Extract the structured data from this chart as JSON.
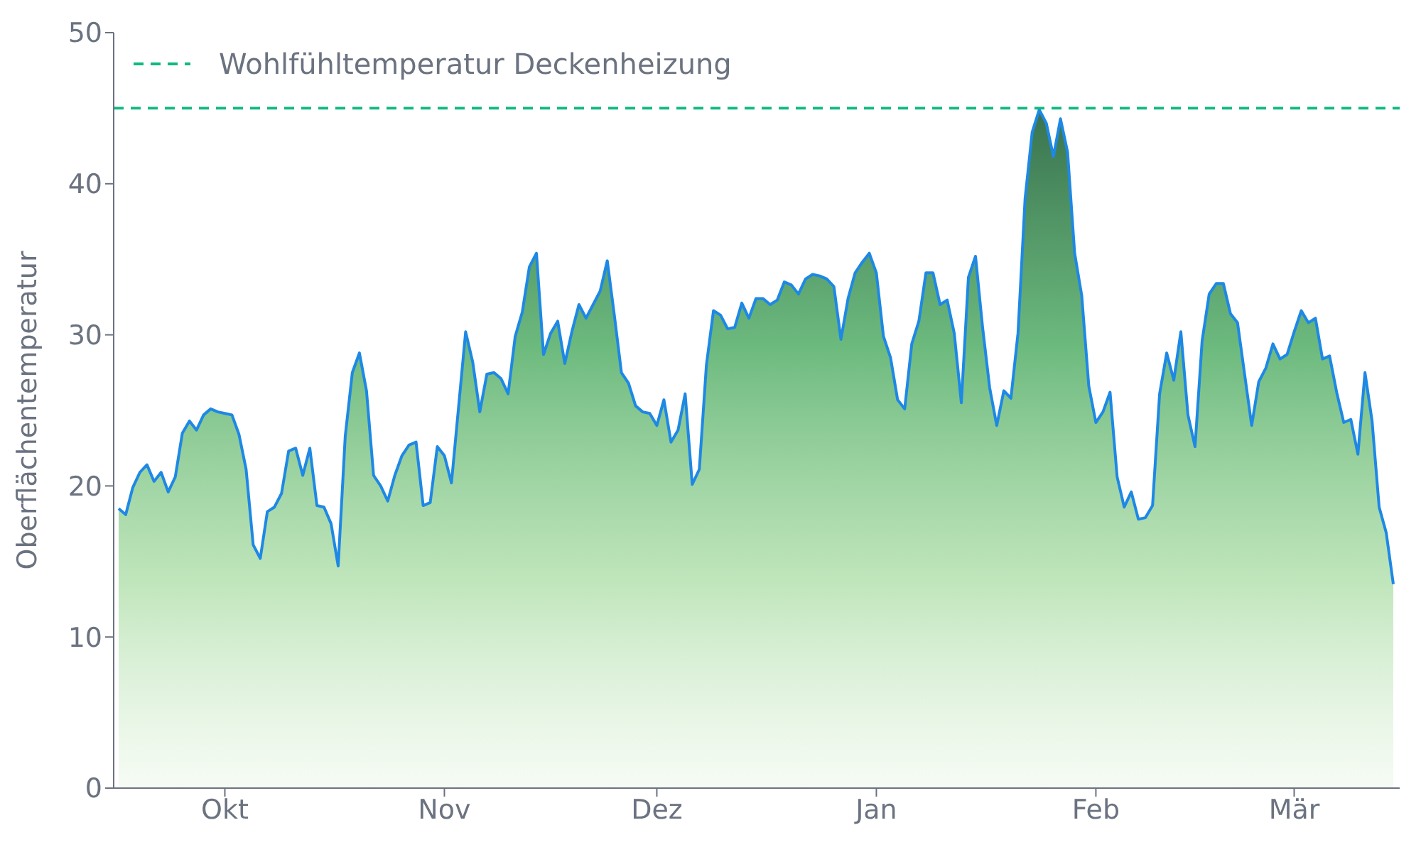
{
  "chart_data": {
    "type": "area",
    "ylabel": "Oberflächentemperatur",
    "ylim": [
      0,
      50
    ],
    "yticks": [
      0,
      10,
      20,
      30,
      40,
      50
    ],
    "categories": [
      null,
      null,
      null,
      null,
      null,
      null,
      null,
      null,
      null,
      null,
      null,
      null,
      null,
      null,
      null,
      "Okt",
      null,
      null,
      null,
      null,
      null,
      null,
      null,
      null,
      null,
      null,
      null,
      null,
      null,
      null,
      null,
      null,
      null,
      null,
      null,
      null,
      null,
      null,
      null,
      null,
      null,
      null,
      null,
      null,
      null,
      null,
      "Nov",
      null,
      null,
      null,
      null,
      null,
      null,
      null,
      null,
      null,
      null,
      null,
      null,
      null,
      null,
      null,
      null,
      null,
      null,
      null,
      null,
      null,
      null,
      null,
      null,
      null,
      null,
      null,
      null,
      null,
      "Dez",
      null,
      null,
      null,
      null,
      null,
      null,
      null,
      null,
      null,
      null,
      null,
      null,
      null,
      null,
      null,
      null,
      null,
      null,
      null,
      null,
      null,
      null,
      null,
      null,
      null,
      null,
      null,
      null,
      null,
      null,
      "Jan",
      null,
      null,
      null,
      null,
      null,
      null,
      null,
      null,
      null,
      null,
      null,
      null,
      null,
      null,
      null,
      null,
      null,
      null,
      null,
      null,
      null,
      null,
      null,
      null,
      null,
      null,
      null,
      null,
      null,
      null,
      "Feb",
      null,
      null,
      null,
      null,
      null,
      null,
      null,
      null,
      null,
      null,
      null,
      null,
      null,
      null,
      null,
      null,
      null,
      null,
      null,
      null,
      null,
      null,
      null,
      null,
      null,
      null,
      null,
      "Mär",
      null,
      null,
      null,
      null,
      null,
      null,
      null,
      null,
      null,
      null,
      null,
      null,
      null,
      null
    ],
    "grid": false,
    "legend": "top left",
    "marker": "none",
    "ref_lines": [
      {
        "axis": "y",
        "value": 45,
        "label": "Wohlfühltemperatur Deckenheizung",
        "color": "#10b981",
        "line_style": "dashed"
      }
    ],
    "series": [
      {
        "color": "#1e88e5",
        "values": [
          18.5,
          18.1,
          19.9,
          20.9,
          21.4,
          20.3,
          20.9,
          19.6,
          20.6,
          23.5,
          24.3,
          23.7,
          24.7,
          25.1,
          24.9,
          24.8,
          24.7,
          23.4,
          21.1,
          16.1,
          15.2,
          18.3,
          18.6,
          19.5,
          22.3,
          22.5,
          20.7,
          22.5,
          18.7,
          18.6,
          17.5,
          14.7,
          23.3,
          27.5,
          28.8,
          26.3,
          20.7,
          20.0,
          19.0,
          20.7,
          22.0,
          22.7,
          22.9,
          18.7,
          18.9,
          22.6,
          22.0,
          20.2,
          25.2,
          30.2,
          28.2,
          24.9,
          27.4,
          27.5,
          27.1,
          26.1,
          29.9,
          31.5,
          34.5,
          35.4,
          28.7,
          30.1,
          30.9,
          28.1,
          30.2,
          32.0,
          31.1,
          32.0,
          32.9,
          34.9,
          31.3,
          27.5,
          26.8,
          25.3,
          24.9,
          24.8,
          24.0,
          25.7,
          22.9,
          23.7,
          26.1,
          20.1,
          21.1,
          28.0,
          31.6,
          31.3,
          30.4,
          30.5,
          32.1,
          31.1,
          32.4,
          32.4,
          32.0,
          32.3,
          33.5,
          33.3,
          32.7,
          33.7,
          34.0,
          33.9,
          33.7,
          33.2,
          29.7,
          32.4,
          34.1,
          34.8,
          35.4,
          34.1,
          29.9,
          28.5,
          25.7,
          25.1,
          29.4,
          30.9,
          34.1,
          34.1,
          32.0,
          32.3,
          30.1,
          25.5,
          33.8,
          35.2,
          30.5,
          26.5,
          24.0,
          26.3,
          25.8,
          30.1,
          39.0,
          43.4,
          44.9,
          44.0,
          41.8,
          44.3,
          42.1,
          35.4,
          32.6,
          26.6,
          24.2,
          24.9,
          26.2,
          20.6,
          18.6,
          19.6,
          17.8,
          17.9,
          18.7,
          26.1,
          28.8,
          27.0,
          30.2,
          24.7,
          22.6,
          29.6,
          32.7,
          33.4,
          33.4,
          31.4,
          30.8,
          27.4,
          24.0,
          26.9,
          27.8,
          29.4,
          28.4,
          28.7,
          30.2,
          31.6,
          30.8,
          31.1,
          28.4,
          28.6,
          26.2,
          24.2,
          24.4,
          22.1,
          27.5,
          24.3,
          18.6,
          16.9,
          13.5
        ]
      }
    ]
  }
}
